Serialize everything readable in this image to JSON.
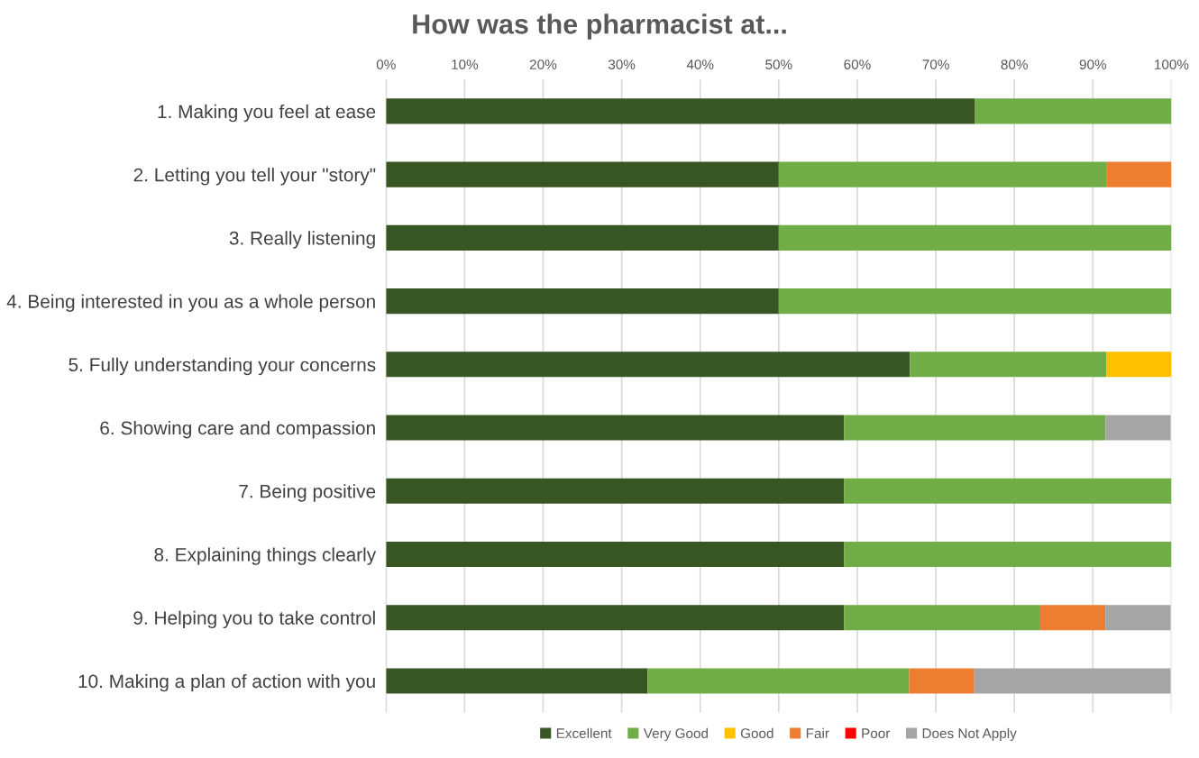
{
  "chart_data": {
    "type": "bar",
    "orientation": "horizontal",
    "stacked": true,
    "title": "How was the pharmacist at...",
    "categories": [
      "1. Making you feel at ease",
      "2. Letting you tell your \"story\"",
      "3. Really listening",
      "4. Being interested in you as a whole person",
      "5. Fully understanding your concerns",
      "6. Showing care and compassion",
      "7. Being positive",
      "8. Explaining things clearly",
      "9. Helping you to take control",
      "10. Making a plan of action with you"
    ],
    "series": [
      {
        "name": "Excellent",
        "color": "#375623",
        "values": [
          75,
          50,
          50,
          50,
          66.7,
          58.3,
          58.3,
          58.3,
          58.3,
          33.3
        ]
      },
      {
        "name": "Very Good",
        "color": "#70ad47",
        "values": [
          25,
          41.7,
          50,
          50,
          25,
          33.3,
          41.7,
          41.7,
          25,
          33.3
        ]
      },
      {
        "name": "Good",
        "color": "#ffc000",
        "values": [
          0,
          0,
          0,
          0,
          8.3,
          0,
          0,
          0,
          0,
          0
        ]
      },
      {
        "name": "Fair",
        "color": "#ed7d31",
        "values": [
          0,
          8.3,
          0,
          0,
          0,
          0,
          0,
          0,
          8.3,
          8.3
        ]
      },
      {
        "name": "Poor",
        "color": "#ff0000",
        "values": [
          0,
          0,
          0,
          0,
          0,
          0,
          0,
          0,
          0,
          0
        ]
      },
      {
        "name": "Does Not Apply",
        "color": "#a5a5a5",
        "values": [
          0,
          0,
          0,
          0,
          0,
          8.3,
          0,
          0,
          8.3,
          25
        ]
      }
    ],
    "xlim": [
      0,
      100
    ],
    "xticks": [
      {
        "value": 0,
        "label": "0%"
      },
      {
        "value": 10,
        "label": "10%"
      },
      {
        "value": 20,
        "label": "20%"
      },
      {
        "value": 30,
        "label": "30%"
      },
      {
        "value": 40,
        "label": "40%"
      },
      {
        "value": 50,
        "label": "50%"
      },
      {
        "value": 60,
        "label": "60%"
      },
      {
        "value": 70,
        "label": "70%"
      },
      {
        "value": 80,
        "label": "80%"
      },
      {
        "value": 90,
        "label": "90%"
      },
      {
        "value": 100,
        "label": "100%"
      }
    ],
    "grid": "x",
    "legend": "bottom"
  }
}
